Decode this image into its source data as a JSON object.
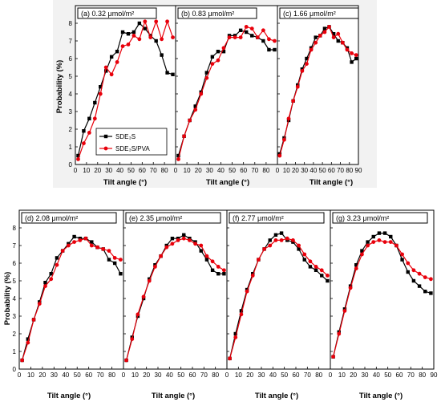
{
  "figure": {
    "top_ylabel": "Probability (%)",
    "bottom_ylabel": "Probability (%)",
    "xlabel": "Tilt angle (°)"
  },
  "legend": {
    "entries": [
      {
        "name": "SDE₃S",
        "color": "#000000",
        "marker": "square"
      },
      {
        "name": "SDE₃S/PVA",
        "color": "#e8000b",
        "marker": "circle"
      }
    ]
  },
  "chart_data": [
    {
      "type": "line",
      "title": "(a) 0.32 μmol/m²",
      "xlabel": "Tilt angle (°)",
      "ylabel": "Probability (%)",
      "xlim": [
        0,
        90
      ],
      "ylim": [
        0,
        9
      ],
      "x_ticks": [
        0,
        10,
        20,
        30,
        40,
        50,
        60,
        70,
        80
      ],
      "y_ticks": [
        0,
        1,
        2,
        3,
        4,
        5,
        6,
        7,
        8
      ],
      "legend_position": "bottom-left",
      "series": [
        {
          "name": "SDE₃S",
          "color": "#000000",
          "marker": "square",
          "x": [
            2.5,
            7.5,
            12.5,
            17.5,
            22.5,
            27.5,
            32.5,
            37.5,
            42.5,
            47.5,
            52.5,
            57.5,
            62.5,
            67.5,
            72.5,
            77.5,
            82.5,
            87.5
          ],
          "y": [
            0.5,
            1.9,
            2.6,
            3.5,
            4.4,
            5.3,
            6.1,
            6.4,
            7.5,
            7.4,
            7.5,
            8.0,
            7.7,
            7.3,
            7.0,
            6.2,
            5.2,
            5.1
          ]
        },
        {
          "name": "SDE₃S/PVA",
          "color": "#e8000b",
          "marker": "circle",
          "x": [
            2.5,
            7.5,
            12.5,
            17.5,
            22.5,
            27.5,
            32.5,
            37.5,
            42.5,
            47.5,
            52.5,
            57.5,
            62.5,
            67.5,
            72.5,
            77.5,
            82.5,
            87.5
          ],
          "y": [
            0.3,
            1.2,
            1.8,
            2.6,
            4.0,
            5.5,
            5.1,
            5.8,
            6.7,
            6.8,
            7.3,
            7.1,
            8.1,
            7.2,
            8.1,
            7.1,
            8.1,
            7.2
          ]
        }
      ]
    },
    {
      "type": "line",
      "title": "(b) 0.83 μmol/m²",
      "xlabel": "Tilt angle (°)",
      "xlim": [
        0,
        90
      ],
      "ylim": [
        0,
        9
      ],
      "x_ticks": [
        0,
        10,
        20,
        30,
        40,
        50,
        60,
        70,
        80
      ],
      "series": [
        {
          "name": "SDE₃S",
          "color": "#000000",
          "marker": "square",
          "x": [
            2.5,
            7.5,
            12.5,
            17.5,
            22.5,
            27.5,
            32.5,
            37.5,
            42.5,
            47.5,
            52.5,
            57.5,
            62.5,
            67.5,
            72.5,
            77.5,
            82.5,
            87.5
          ],
          "y": [
            0.5,
            1.6,
            2.5,
            3.3,
            4.1,
            5.2,
            6.1,
            6.4,
            6.4,
            7.3,
            7.3,
            7.6,
            7.5,
            7.3,
            7.2,
            7.0,
            6.5,
            6.5
          ]
        },
        {
          "name": "SDE₃S/PVA",
          "color": "#e8000b",
          "marker": "circle",
          "x": [
            2.5,
            7.5,
            12.5,
            17.5,
            22.5,
            27.5,
            32.5,
            37.5,
            42.5,
            47.5,
            52.5,
            57.5,
            62.5,
            67.5,
            72.5,
            77.5,
            82.5,
            87.5
          ],
          "y": [
            0.3,
            1.6,
            2.5,
            3.1,
            4.0,
            4.9,
            5.7,
            5.9,
            6.6,
            7.2,
            7.2,
            7.2,
            7.8,
            7.7,
            7.2,
            7.6,
            7.1,
            7.0
          ]
        }
      ]
    },
    {
      "type": "line",
      "title": "(c) 1.66 μmol/m²",
      "xlabel": "Tilt angle (°)",
      "xlim": [
        0,
        90
      ],
      "ylim": [
        0,
        9
      ],
      "x_ticks": [
        0,
        10,
        20,
        30,
        40,
        50,
        60,
        70,
        80,
        90
      ],
      "series": [
        {
          "name": "SDE₃S",
          "color": "#000000",
          "marker": "square",
          "x": [
            2.5,
            7.5,
            12.5,
            17.5,
            22.5,
            27.5,
            32.5,
            37.5,
            42.5,
            47.5,
            52.5,
            57.5,
            62.5,
            67.5,
            72.5,
            77.5,
            82.5,
            87.5
          ],
          "y": [
            0.6,
            1.5,
            2.5,
            3.6,
            4.5,
            5.4,
            6.0,
            6.6,
            7.2,
            7.3,
            7.7,
            7.8,
            7.4,
            7.0,
            6.9,
            6.6,
            5.8,
            6.0
          ]
        },
        {
          "name": "SDE₃S/PVA",
          "color": "#e8000b",
          "marker": "circle",
          "x": [
            2.5,
            7.5,
            12.5,
            17.5,
            22.5,
            27.5,
            32.5,
            37.5,
            42.5,
            47.5,
            52.5,
            57.5,
            62.5,
            67.5,
            72.5,
            77.5,
            82.5,
            87.5
          ],
          "y": [
            0.5,
            1.4,
            2.6,
            3.6,
            4.4,
            5.3,
            5.7,
            6.5,
            6.9,
            7.3,
            7.5,
            7.8,
            7.2,
            7.4,
            6.9,
            6.5,
            6.3,
            6.2
          ]
        }
      ]
    },
    {
      "type": "line",
      "title": "(d) 2.08 μmol/m²",
      "xlabel": "Tilt angle (°)",
      "ylabel": "Probability (%)",
      "xlim": [
        0,
        90
      ],
      "ylim": [
        0,
        9
      ],
      "x_ticks": [
        0,
        10,
        20,
        30,
        40,
        50,
        60,
        70,
        80
      ],
      "y_ticks": [
        0,
        1,
        2,
        3,
        4,
        5,
        6,
        7,
        8
      ],
      "series": [
        {
          "name": "SDE₃S",
          "color": "#000000",
          "marker": "square",
          "x": [
            2.5,
            7.5,
            12.5,
            17.5,
            22.5,
            27.5,
            32.5,
            37.5,
            42.5,
            47.5,
            52.5,
            57.5,
            62.5,
            67.5,
            72.5,
            77.5,
            82.5,
            87.5
          ],
          "y": [
            0.5,
            1.7,
            2.8,
            3.8,
            4.9,
            5.4,
            6.3,
            6.7,
            7.1,
            7.5,
            7.4,
            7.4,
            7.2,
            6.9,
            6.8,
            6.2,
            6.0,
            5.4
          ]
        },
        {
          "name": "SDE₃S/PVA",
          "color": "#e8000b",
          "marker": "circle",
          "x": [
            2.5,
            7.5,
            12.5,
            17.5,
            22.5,
            27.5,
            32.5,
            37.5,
            42.5,
            47.5,
            52.5,
            57.5,
            62.5,
            67.5,
            72.5,
            77.5,
            82.5,
            87.5
          ],
          "y": [
            0.5,
            1.5,
            2.8,
            3.7,
            4.7,
            5.1,
            5.9,
            6.7,
            7.0,
            7.2,
            7.3,
            7.4,
            7.0,
            6.9,
            6.8,
            6.7,
            6.3,
            6.2
          ]
        }
      ]
    },
    {
      "type": "line",
      "title": "(e) 2.35 μmol/m²",
      "xlabel": "Tilt angle (°)",
      "xlim": [
        0,
        90
      ],
      "ylim": [
        0,
        9
      ],
      "x_ticks": [
        0,
        10,
        20,
        30,
        40,
        50,
        60,
        70,
        80
      ],
      "series": [
        {
          "name": "SDE₃S",
          "color": "#000000",
          "marker": "square",
          "x": [
            2.5,
            7.5,
            12.5,
            17.5,
            22.5,
            27.5,
            32.5,
            37.5,
            42.5,
            47.5,
            52.5,
            57.5,
            62.5,
            67.5,
            72.5,
            77.5,
            82.5,
            87.5
          ],
          "y": [
            0.5,
            1.8,
            3.0,
            4.0,
            5.1,
            5.9,
            6.4,
            7.0,
            7.4,
            7.4,
            7.6,
            7.4,
            7.2,
            6.7,
            6.2,
            5.6,
            5.4,
            5.4
          ]
        },
        {
          "name": "SDE₃S/PVA",
          "color": "#e8000b",
          "marker": "circle",
          "x": [
            2.5,
            7.5,
            12.5,
            17.5,
            22.5,
            27.5,
            32.5,
            37.5,
            42.5,
            47.5,
            52.5,
            57.5,
            62.5,
            67.5,
            72.5,
            77.5,
            82.5,
            87.5
          ],
          "y": [
            0.5,
            1.7,
            3.1,
            4.1,
            5.0,
            5.8,
            6.4,
            6.9,
            7.1,
            7.3,
            7.4,
            7.3,
            7.1,
            7.0,
            6.4,
            6.1,
            5.8,
            5.6
          ]
        }
      ]
    },
    {
      "type": "line",
      "title": "(f) 2.77 μmol/m²",
      "xlabel": "Tilt angle (°)",
      "xlim": [
        0,
        90
      ],
      "ylim": [
        0,
        9
      ],
      "x_ticks": [
        0,
        10,
        20,
        30,
        40,
        50,
        60,
        70,
        80
      ],
      "series": [
        {
          "name": "SDE₃S",
          "color": "#000000",
          "marker": "square",
          "x": [
            2.5,
            7.5,
            12.5,
            17.5,
            22.5,
            27.5,
            32.5,
            37.5,
            42.5,
            47.5,
            52.5,
            57.5,
            62.5,
            67.5,
            72.5,
            77.5,
            82.5,
            87.5
          ],
          "y": [
            0.6,
            2.0,
            3.3,
            4.5,
            5.4,
            6.2,
            6.8,
            7.3,
            7.6,
            7.7,
            7.3,
            7.2,
            6.8,
            6.2,
            5.8,
            5.6,
            5.3,
            5.0
          ]
        },
        {
          "name": "SDE₃S/PVA",
          "color": "#e8000b",
          "marker": "circle",
          "x": [
            2.5,
            7.5,
            12.5,
            17.5,
            22.5,
            27.5,
            32.5,
            37.5,
            42.5,
            47.5,
            52.5,
            57.5,
            62.5,
            67.5,
            72.5,
            77.5,
            82.5,
            87.5
          ],
          "y": [
            0.6,
            1.8,
            3.1,
            4.4,
            5.3,
            6.2,
            6.8,
            7.0,
            7.3,
            7.3,
            7.4,
            7.3,
            7.0,
            6.5,
            6.1,
            5.8,
            5.6,
            5.3
          ]
        }
      ]
    },
    {
      "type": "line",
      "title": "(g) 3.23 μmol/m²",
      "xlabel": "Tilt angle (°)",
      "xlim": [
        0,
        90
      ],
      "ylim": [
        0,
        9
      ],
      "x_ticks": [
        0,
        10,
        20,
        30,
        40,
        50,
        60,
        70,
        80,
        90
      ],
      "series": [
        {
          "name": "SDE₃S",
          "color": "#000000",
          "marker": "square",
          "x": [
            2.5,
            7.5,
            12.5,
            17.5,
            22.5,
            27.5,
            32.5,
            37.5,
            42.5,
            47.5,
            52.5,
            57.5,
            62.5,
            67.5,
            72.5,
            77.5,
            82.5,
            87.5
          ],
          "y": [
            0.7,
            2.1,
            3.4,
            4.7,
            5.9,
            6.7,
            7.2,
            7.5,
            7.7,
            7.7,
            7.5,
            7.0,
            6.2,
            5.5,
            5.0,
            4.7,
            4.4,
            4.3
          ]
        },
        {
          "name": "SDE₃S/PVA",
          "color": "#e8000b",
          "marker": "circle",
          "x": [
            2.5,
            7.5,
            12.5,
            17.5,
            22.5,
            27.5,
            32.5,
            37.5,
            42.5,
            47.5,
            52.5,
            57.5,
            62.5,
            67.5,
            72.5,
            77.5,
            82.5,
            87.5
          ],
          "y": [
            0.7,
            2.0,
            3.3,
            4.6,
            5.7,
            6.5,
            7.0,
            7.2,
            7.3,
            7.2,
            7.2,
            7.0,
            6.5,
            6.0,
            5.6,
            5.4,
            5.2,
            5.1
          ]
        }
      ]
    }
  ]
}
